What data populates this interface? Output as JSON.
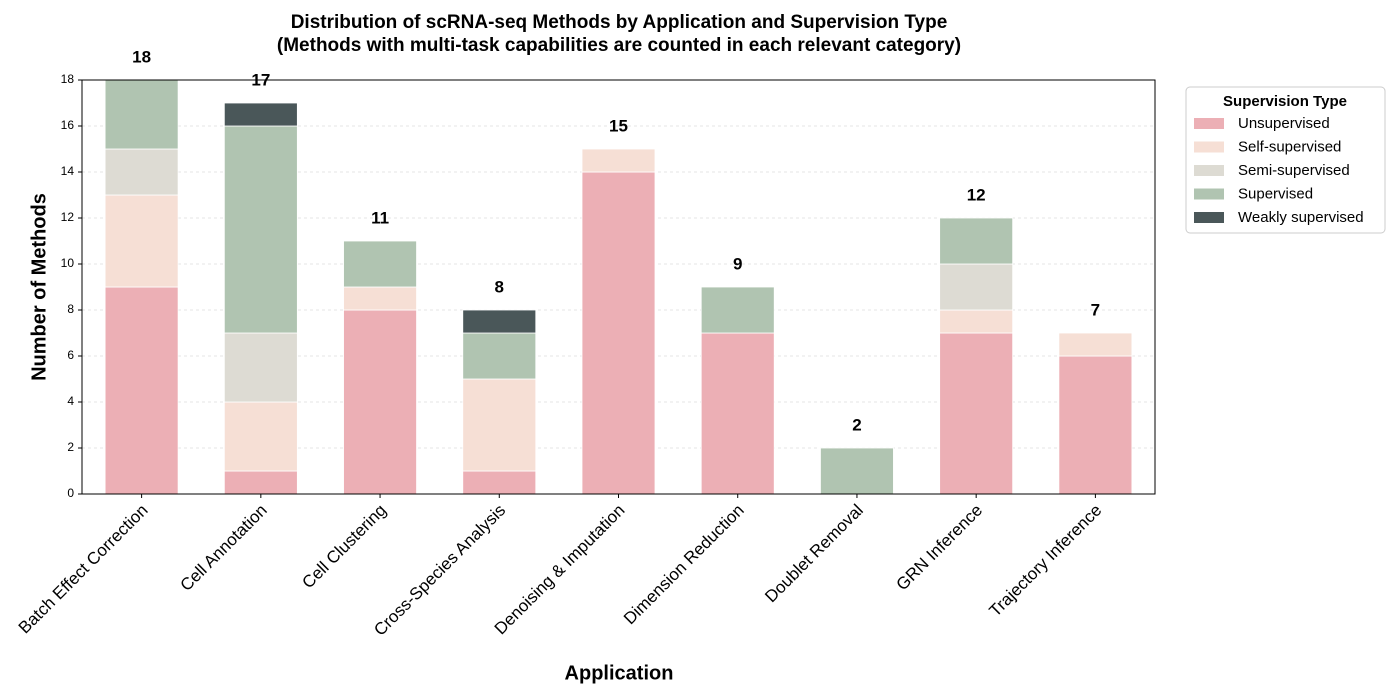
{
  "chart_data": {
    "type": "stacked_bar",
    "title": "Distribution of scRNA-seq Methods by Application and Supervision Type",
    "subtitle": "(Methods with multi-task capabilities are counted in each relevant category)",
    "x_label": "Application",
    "y_label": "Number of Methods",
    "categories": [
      "Batch Effect Correction",
      "Cell Annotation",
      "Cell Clustering",
      "Cross-Species Analysis",
      "Denoising & Imputation",
      "Dimension Reduction",
      "Doublet Removal",
      "GRN Inference",
      "Trajectory Inference"
    ],
    "series": [
      {
        "name": "Unsupervised",
        "color": "#ecafb5",
        "values": [
          9,
          1,
          8,
          1,
          14,
          7,
          0,
          7,
          6
        ]
      },
      {
        "name": "Self-supervised",
        "color": "#f6dfd5",
        "values": [
          4,
          3,
          1,
          4,
          1,
          0,
          0,
          1,
          1
        ]
      },
      {
        "name": "Semi-supervised",
        "color": "#dddbd3",
        "values": [
          2,
          3,
          0,
          0,
          0,
          0,
          0,
          2,
          0
        ]
      },
      {
        "name": "Supervised",
        "color": "#b0c4b1",
        "values": [
          3,
          9,
          2,
          2,
          0,
          2,
          2,
          2,
          0
        ]
      },
      {
        "name": "Weakly supervised",
        "color": "#4a5759",
        "values": [
          0,
          1,
          0,
          1,
          0,
          0,
          0,
          0,
          0
        ]
      }
    ],
    "totals": [
      18,
      17,
      11,
      8,
      15,
      9,
      2,
      12,
      7
    ],
    "legend_title": "Supervision Type",
    "legend_position": "outside-upper-right",
    "ylim": [
      0,
      18
    ],
    "yticks": [
      0,
      2,
      4,
      6,
      8,
      10,
      12,
      14,
      16,
      18
    ],
    "grid": true
  }
}
